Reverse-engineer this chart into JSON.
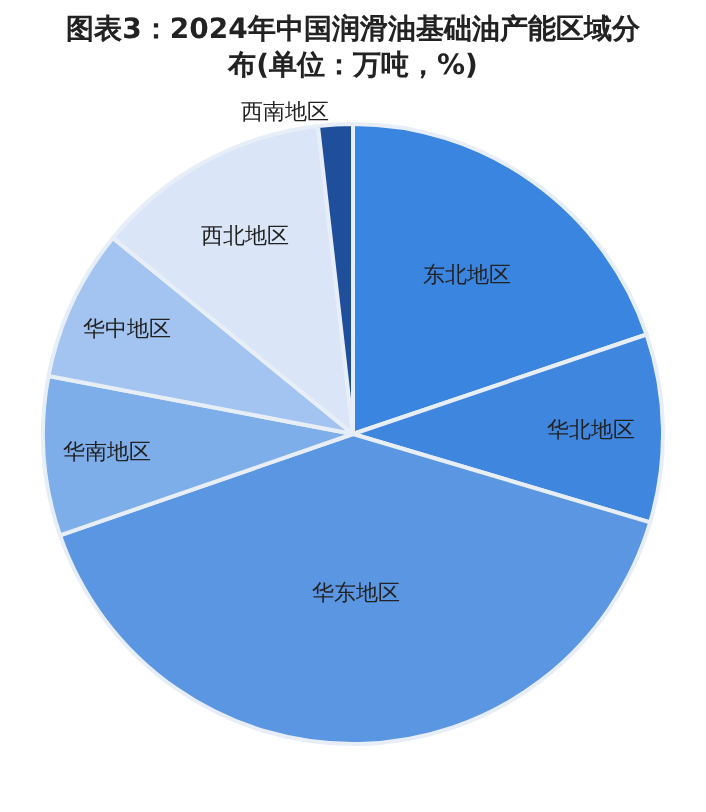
{
  "chart_data": {
    "type": "pie",
    "title": "图表3：2024年中国润滑油基础油产能区域分布(单位：万吨，%)",
    "categories": [
      "东北地区",
      "华北地区",
      "华东地区",
      "华南地区",
      "华中地区",
      "西北地区",
      "西南地区"
    ],
    "values": [
      19.8,
      9.8,
      40.1,
      8.3,
      7.9,
      12.3,
      1.8
    ],
    "colors": [
      "#3a85e0",
      "#3f86de",
      "#5b96e3",
      "#7eaee9",
      "#a3c4f0",
      "#dae6f8",
      "#1f4f9a"
    ]
  }
}
